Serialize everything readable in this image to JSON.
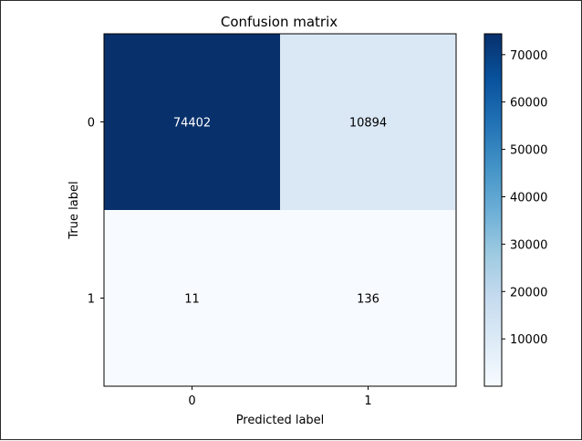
{
  "chart_data": {
    "type": "heatmap",
    "title": "Confusion matrix",
    "xlabel": "Predicted label",
    "ylabel": "True label",
    "x_categories": [
      "0",
      "1"
    ],
    "y_categories": [
      "0",
      "1"
    ],
    "matrix": [
      [
        74402,
        10894
      ],
      [
        11,
        136
      ]
    ],
    "colormap": "Blues",
    "colorbar": {
      "ticks": [
        10000,
        20000,
        30000,
        40000,
        50000,
        60000,
        70000
      ],
      "range": [
        11,
        74402
      ]
    },
    "colors": {
      "cell_text_dark": "#ffffff",
      "cell_text_light": "#000000",
      "axis": "#000000",
      "background": "#ffffff"
    }
  }
}
